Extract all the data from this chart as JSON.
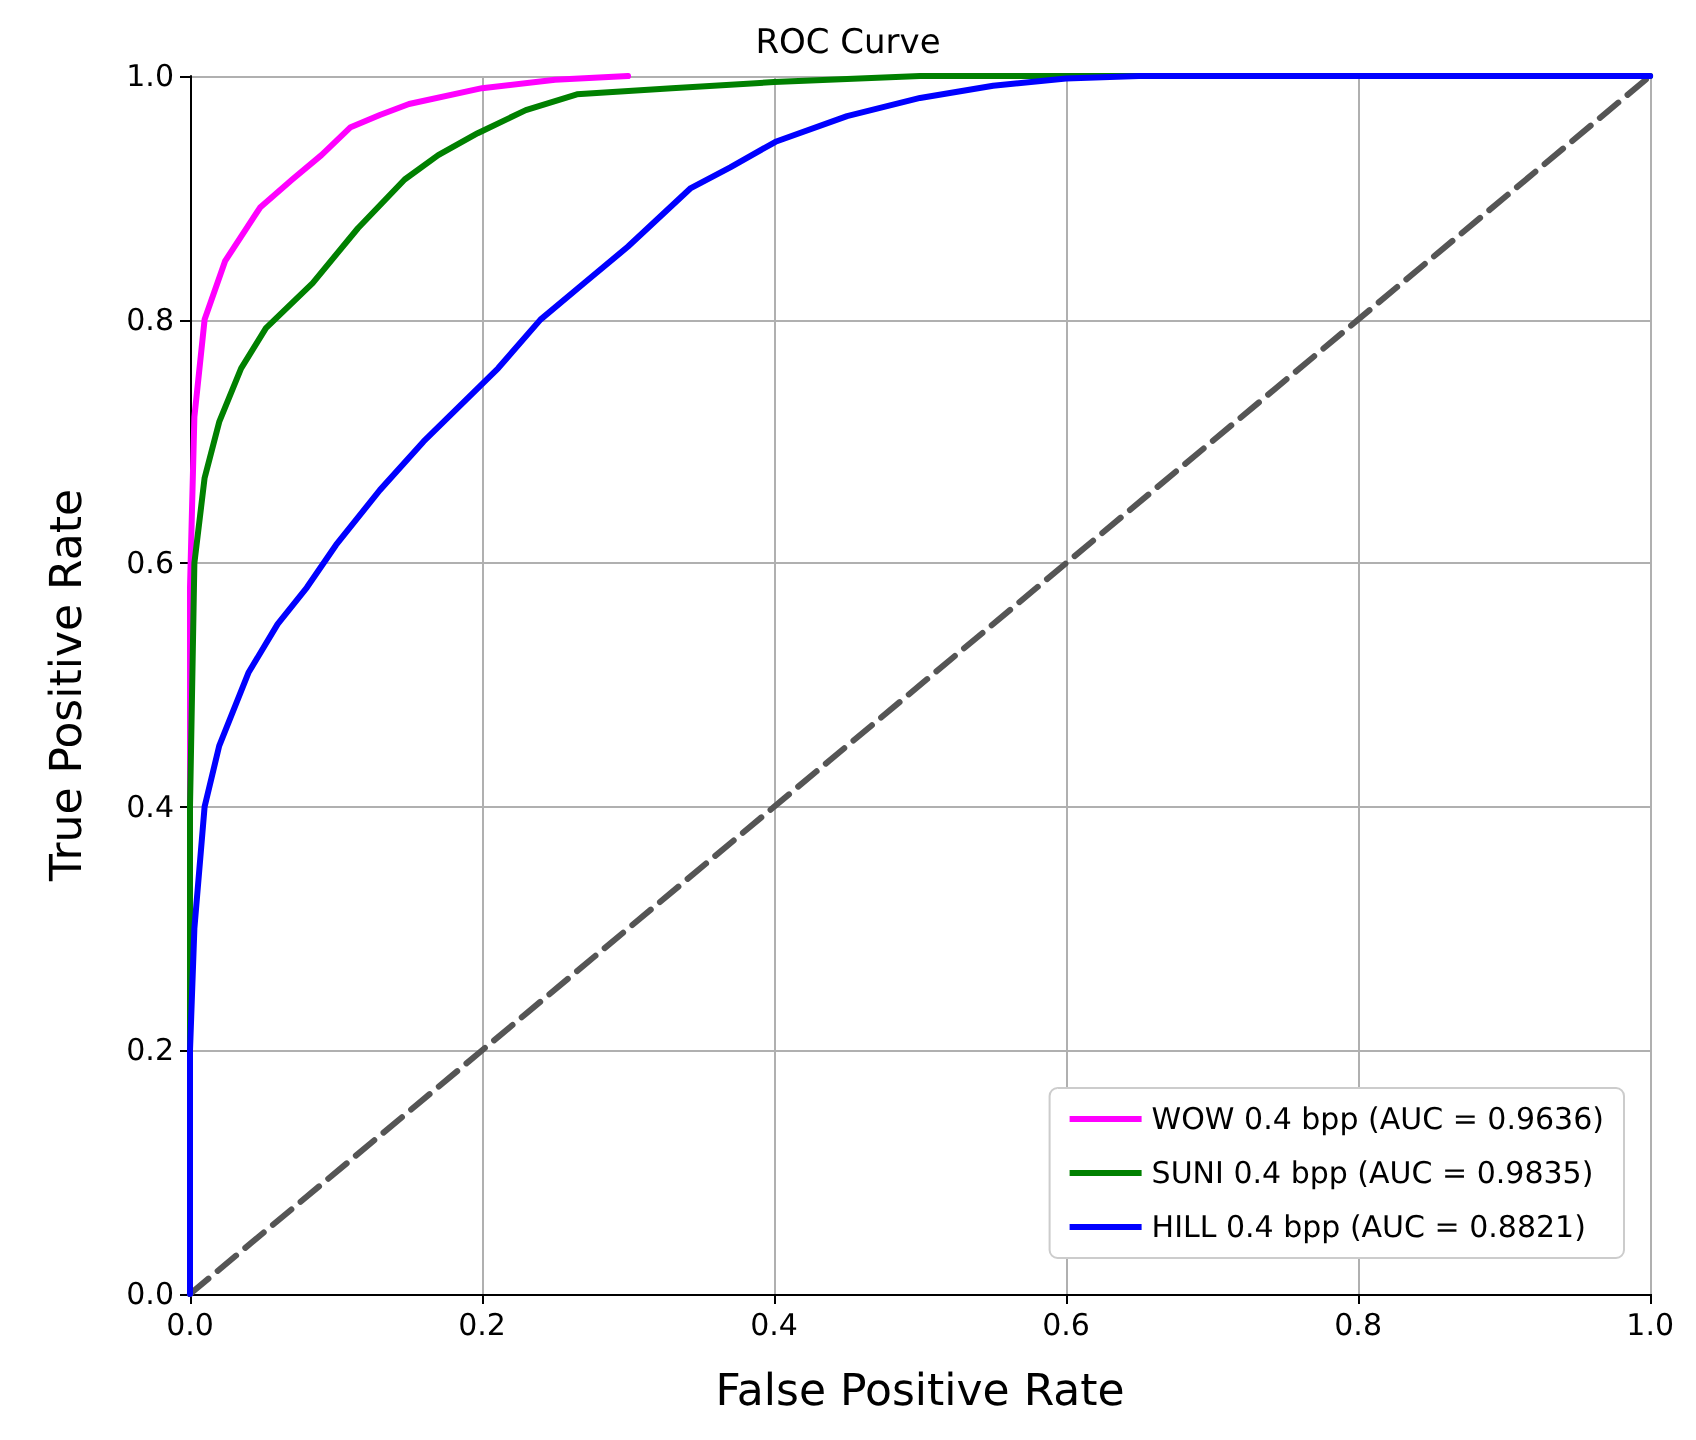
{
  "chart_data": {
    "type": "line",
    "title": "ROC Curve",
    "xlabel": "False Positive Rate",
    "ylabel": "True Positive Rate",
    "xlim": [
      0,
      1
    ],
    "ylim": [
      0,
      1
    ],
    "xticks": [
      {
        "value": 0,
        "label": "0.0"
      },
      {
        "value": 0.2,
        "label": "0.2"
      },
      {
        "value": 0.4,
        "label": "0.4"
      },
      {
        "value": 0.6,
        "label": "0.6"
      },
      {
        "value": 0.8,
        "label": "0.8"
      },
      {
        "value": 1,
        "label": "1.0"
      }
    ],
    "yticks": [
      {
        "value": 0,
        "label": "0.0"
      },
      {
        "value": 0.2,
        "label": "0.2"
      },
      {
        "value": 0.4,
        "label": "0.4"
      },
      {
        "value": 0.6,
        "label": "0.6"
      },
      {
        "value": 0.8,
        "label": "0.8"
      },
      {
        "value": 1,
        "label": "1.0"
      }
    ],
    "grid": true,
    "legend": "bottom right",
    "marker": "none",
    "series": [
      {
        "name": "WOW 0.4 bpp (AUC = 0.9636)",
        "color": "#ff00ff",
        "x": [
          0,
          0,
          0.003,
          0.01,
          0.024,
          0.048,
          0.07,
          0.09,
          0.11,
          0.13,
          0.15,
          0.2,
          0.25,
          0.3
        ],
        "values": [
          0,
          0.58,
          0.72,
          0.8,
          0.848,
          0.892,
          0.915,
          0.935,
          0.958,
          0.968,
          0.977,
          0.99,
          0.997,
          1
        ]
      },
      {
        "name": "SUNI 0.4 bpp (AUC = 0.9835)",
        "color": "#008000",
        "x": [
          0,
          0,
          0.003,
          0.01,
          0.02,
          0.035,
          0.052,
          0.084,
          0.115,
          0.147,
          0.17,
          0.197,
          0.23,
          0.265,
          0.33,
          0.4,
          0.5,
          1
        ],
        "values": [
          0,
          0.4,
          0.6,
          0.67,
          0.716,
          0.76,
          0.793,
          0.83,
          0.875,
          0.915,
          0.935,
          0.953,
          0.972,
          0.985,
          0.99,
          0.995,
          1,
          1
        ]
      },
      {
        "name": "HILL 0.4 bpp (AUC = 0.8821)",
        "color": "#0000ff",
        "x": [
          0,
          0,
          0.003,
          0.01,
          0.02,
          0.04,
          0.06,
          0.08,
          0.1,
          0.13,
          0.16,
          0.211,
          0.24,
          0.27,
          0.3,
          0.343,
          0.37,
          0.401,
          0.45,
          0.5,
          0.55,
          0.6,
          0.65,
          1
        ],
        "values": [
          0,
          0.2,
          0.3,
          0.4,
          0.45,
          0.51,
          0.55,
          0.58,
          0.615,
          0.66,
          0.7,
          0.76,
          0.8,
          0.83,
          0.86,
          0.908,
          0.925,
          0.946,
          0.967,
          0.982,
          0.992,
          0.998,
          1,
          1
        ]
      },
      {
        "color": "#555555",
        "line_style": "dashed",
        "x": [
          0,
          1
        ],
        "values": [
          0,
          1
        ]
      }
    ]
  }
}
